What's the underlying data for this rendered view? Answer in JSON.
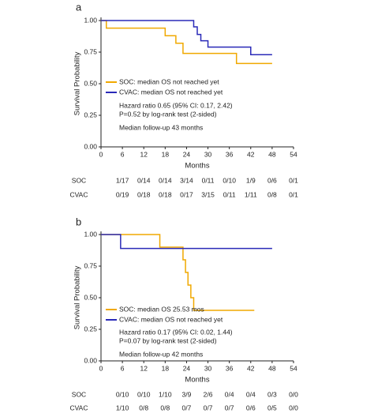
{
  "chart_data": [
    {
      "type": "step",
      "panel_label": "a",
      "ylabel": "Survival Probability",
      "xlabel": "Months",
      "xlim": [
        0,
        54
      ],
      "ylim": [
        0,
        1
      ],
      "xticks": [
        0,
        6,
        12,
        18,
        24,
        30,
        36,
        42,
        48,
        54
      ],
      "yticks": [
        {
          "value": 0,
          "label": "0.00"
        },
        {
          "value": 0.25,
          "label": "0.25"
        },
        {
          "value": 0.5,
          "label": "0.50"
        },
        {
          "value": 0.75,
          "label": "0.75"
        },
        {
          "value": 1,
          "label": "1.00"
        }
      ],
      "series": [
        {
          "name": "SOC: median OS not reached yet",
          "color": "#f0a800",
          "x": [
            0,
            1.5,
            18,
            21,
            23,
            38,
            48
          ],
          "values": [
            1,
            0.94,
            0.88,
            0.82,
            0.74,
            0.66,
            0.66
          ]
        },
        {
          "name": "CVAC: median OS not reached yet",
          "color": "#2a2ab8",
          "x": [
            0,
            26,
            27,
            28,
            30,
            42,
            48
          ],
          "values": [
            1,
            0.95,
            0.89,
            0.84,
            0.79,
            0.73,
            0.73
          ]
        }
      ],
      "annotations": [
        "Hazard ratio 0.65 (95% CI: 0.17, 2.42)",
        "P=0.52 by log-rank test (2-sided)",
        "Median follow-up 43 months"
      ],
      "risk_table": [
        {
          "name": "SOC",
          "values": [
            "1/17",
            "0/14",
            "0/14",
            "3/14",
            "0/11",
            "0/10",
            "1/9",
            "0/6",
            "0/1"
          ]
        },
        {
          "name": "CVAC",
          "values": [
            "0/19",
            "0/18",
            "0/18",
            "0/17",
            "3/15",
            "0/11",
            "1/11",
            "0/8",
            "0/1"
          ]
        }
      ]
    },
    {
      "type": "step",
      "panel_label": "b",
      "ylabel": "Survival Probability",
      "xlabel": "Months",
      "xlim": [
        0,
        54
      ],
      "ylim": [
        0,
        1
      ],
      "xticks": [
        0,
        6,
        12,
        18,
        24,
        30,
        36,
        42,
        48,
        54
      ],
      "yticks": [
        {
          "value": 0,
          "label": "0.00"
        },
        {
          "value": 0.25,
          "label": "0.25"
        },
        {
          "value": 0.5,
          "label": "0.50"
        },
        {
          "value": 0.75,
          "label": "0.75"
        },
        {
          "value": 1,
          "label": "1.00"
        }
      ],
      "series": [
        {
          "name": "SOC: median OS 25.53 mos",
          "color": "#f0a800",
          "x": [
            0,
            16.5,
            23,
            23.7,
            24.4,
            25.2,
            26,
            43
          ],
          "values": [
            1,
            0.9,
            0.8,
            0.7,
            0.6,
            0.5,
            0.4,
            0.4
          ]
        },
        {
          "name": "CVAC: median OS not reached yet",
          "color": "#2a2ab8",
          "x": [
            0,
            5.5,
            48
          ],
          "values": [
            1,
            0.89,
            0.89
          ]
        }
      ],
      "annotations": [
        "Hazard ratio 0.17 (95% CI: 0.02, 1.44)",
        "P=0.07 by log-rank test (2-sided)",
        "Median follow-up 42 months"
      ],
      "risk_table": [
        {
          "name": "SOC",
          "values": [
            "0/10",
            "0/10",
            "1/10",
            "3/9",
            "2/6",
            "0/4",
            "0/4",
            "0/3",
            "0/0"
          ]
        },
        {
          "name": "CVAC",
          "values": [
            "1/10",
            "0/8",
            "0/8",
            "0/7",
            "0/7",
            "0/7",
            "0/6",
            "0/5",
            "0/0"
          ]
        }
      ]
    }
  ]
}
